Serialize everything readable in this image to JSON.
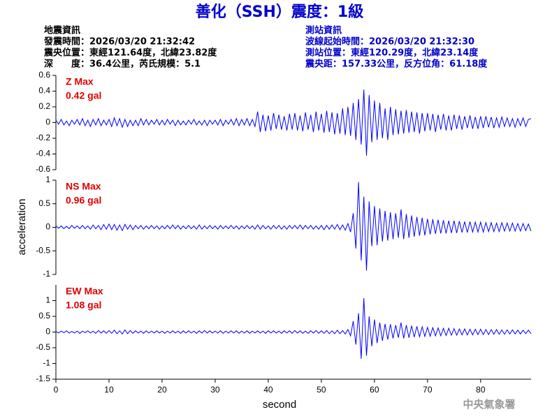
{
  "header": {
    "title": "善化（SSH）震度：1級",
    "left": [
      "地震資訊",
      "發震時間：2026/03/20 21:32:42",
      "震央位置：東經121.64度，北緯23.82度",
      "深　　度：36.4公里，芮氏規模：5.1"
    ],
    "right": [
      "測站資訊",
      "波線起始時間：2026/03/20 21:32:30",
      "測站位置：東經120.29度，北緯23.14度",
      "震央距：157.33公里，反方位角：61.18度"
    ],
    "footer": "中央氣象署"
  },
  "chart_data": {
    "type": "line",
    "color": "#0000ff",
    "xlabel": "second",
    "ylabel": "acceleration",
    "xlim": [
      0,
      89.5
    ],
    "xticks": [
      0,
      10,
      20,
      30,
      40,
      50,
      60,
      70,
      80
    ],
    "x": [
      0,
      0.5,
      1,
      1.5,
      2,
      2.5,
      3,
      3.5,
      4,
      4.5,
      5,
      5.5,
      6,
      6.5,
      7,
      7.5,
      8,
      8.5,
      9,
      9.5,
      10,
      10.5,
      11,
      11.5,
      12,
      12.5,
      13,
      13.5,
      14,
      14.5,
      15,
      15.5,
      16,
      16.5,
      17,
      17.5,
      18,
      18.5,
      19,
      19.5,
      20,
      20.5,
      21,
      21.5,
      22,
      22.5,
      23,
      23.5,
      24,
      24.5,
      25,
      25.5,
      26,
      26.5,
      27,
      27.5,
      28,
      28.5,
      29,
      29.5,
      30,
      30.5,
      31,
      31.5,
      32,
      32.5,
      33,
      33.5,
      34,
      34.5,
      35,
      35.5,
      36,
      36.5,
      37,
      37.5,
      38,
      38.5,
      39,
      39.5,
      40,
      40.5,
      41,
      41.5,
      42,
      42.5,
      43,
      43.5,
      44,
      44.5,
      45,
      45.5,
      46,
      46.5,
      47,
      47.5,
      48,
      48.5,
      49,
      49.5,
      50,
      50.5,
      51,
      51.5,
      52,
      52.5,
      53,
      53.5,
      54,
      54.5,
      55,
      55.5,
      56,
      56.5,
      57,
      57.5,
      58,
      58.5,
      59,
      59.5,
      60,
      60.5,
      61,
      61.5,
      62,
      62.5,
      63,
      63.5,
      64,
      64.5,
      65,
      65.5,
      66,
      66.5,
      67,
      67.5,
      68,
      68.5,
      69,
      69.5,
      70,
      70.5,
      71,
      71.5,
      72,
      72.5,
      73,
      73.5,
      74,
      74.5,
      75,
      75.5,
      76,
      76.5,
      77,
      77.5,
      78,
      78.5,
      79,
      79.5,
      80,
      80.5,
      81,
      81.5,
      82,
      82.5,
      83,
      83.5,
      84,
      84.5,
      85,
      85.5,
      86,
      86.5,
      87,
      87.5,
      88,
      88.5,
      89,
      89.5
    ],
    "panels": [
      {
        "label": "Z Max",
        "max_label": "0.42 gal",
        "ylim": [
          -0.6,
          0.6
        ],
        "yticks": [
          -0.6,
          -0.4,
          -0.2,
          0,
          0.2,
          0.4,
          0.6
        ],
        "values": [
          0.03,
          -0.02,
          0.04,
          -0.03,
          0.02,
          -0.04,
          0.03,
          -0.02,
          0.04,
          -0.03,
          0.05,
          -0.04,
          0.03,
          -0.05,
          0.04,
          -0.03,
          0.05,
          -0.04,
          0.03,
          -0.03,
          0.04,
          -0.05,
          0.06,
          -0.04,
          0.05,
          -0.06,
          0.04,
          -0.05,
          0.03,
          -0.04,
          0.03,
          -0.04,
          0.05,
          -0.03,
          0.04,
          -0.03,
          0.03,
          -0.02,
          0.04,
          -0.03,
          0.03,
          -0.03,
          0.04,
          -0.02,
          0.03,
          -0.04,
          0.03,
          -0.03,
          0.02,
          -0.03,
          0.03,
          -0.02,
          0.04,
          -0.03,
          0.02,
          -0.03,
          0.03,
          -0.04,
          0.03,
          -0.02,
          0.03,
          -0.03,
          0.04,
          -0.04,
          0.03,
          -0.02,
          0.04,
          -0.03,
          0.05,
          -0.04,
          0.04,
          -0.03,
          0.05,
          -0.04,
          0.04,
          -0.05,
          0.14,
          -0.12,
          0.1,
          -0.11,
          0.09,
          -0.1,
          0.12,
          -0.08,
          0.1,
          -0.09,
          0.08,
          -0.1,
          0.11,
          -0.09,
          0.12,
          -0.1,
          0.09,
          -0.11,
          0.13,
          -0.09,
          0.1,
          -0.12,
          0.14,
          -0.1,
          0.11,
          -0.13,
          0.15,
          -0.12,
          0.13,
          -0.15,
          0.12,
          -0.14,
          0.18,
          -0.16,
          0.2,
          -0.17,
          0.25,
          -0.22,
          0.3,
          -0.28,
          0.42,
          -0.42,
          0.35,
          -0.25,
          0.28,
          -0.22,
          0.25,
          -0.2,
          0.18,
          -0.22,
          0.2,
          -0.16,
          0.17,
          -0.15,
          0.15,
          -0.14,
          0.16,
          -0.13,
          0.14,
          -0.12,
          0.13,
          -0.14,
          0.12,
          -0.11,
          0.12,
          -0.1,
          0.11,
          -0.12,
          0.1,
          -0.09,
          0.11,
          -0.1,
          0.09,
          -0.1,
          0.1,
          -0.08,
          0.09,
          -0.09,
          0.08,
          -0.07,
          0.09,
          -0.08,
          0.07,
          -0.08,
          0.08,
          -0.07,
          0.08,
          -0.06,
          0.07,
          -0.07,
          0.06,
          -0.06,
          0.07,
          -0.05,
          0.06,
          -0.05,
          0.05,
          -0.06,
          0.05,
          -0.04,
          0.06,
          -0.05,
          0.04,
          0.05
        ]
      },
      {
        "label": "NS Max",
        "max_label": "0.96 gal",
        "ylim": [
          -1,
          1
        ],
        "yticks": [
          -1,
          -0.5,
          0,
          0.5,
          1
        ],
        "values": [
          0.03,
          -0.02,
          0.03,
          -0.03,
          0.02,
          -0.03,
          0.04,
          -0.02,
          0.03,
          -0.03,
          0.04,
          -0.03,
          0.03,
          -0.04,
          0.05,
          -0.03,
          0.04,
          -0.05,
          0.06,
          -0.04,
          0.07,
          -0.05,
          0.06,
          -0.06,
          0.05,
          -0.07,
          0.06,
          -0.04,
          0.05,
          -0.05,
          0.04,
          -0.03,
          0.04,
          -0.04,
          0.03,
          -0.03,
          0.04,
          -0.03,
          0.03,
          -0.04,
          0.03,
          -0.03,
          0.04,
          -0.03,
          0.05,
          -0.03,
          0.04,
          -0.04,
          0.03,
          -0.03,
          0.04,
          -0.03,
          0.03,
          -0.04,
          0.05,
          -0.04,
          0.03,
          -0.03,
          0.04,
          -0.03,
          0.03,
          -0.04,
          0.04,
          -0.03,
          0.03,
          -0.03,
          0.04,
          -0.03,
          0.03,
          -0.04,
          0.03,
          -0.03,
          0.04,
          -0.03,
          0.03,
          -0.04,
          0.05,
          -0.04,
          0.04,
          -0.03,
          0.03,
          -0.04,
          0.04,
          -0.03,
          0.04,
          -0.04,
          0.03,
          -0.04,
          0.04,
          -0.03,
          0.04,
          -0.03,
          0.05,
          -0.04,
          0.04,
          -0.03,
          0.04,
          -0.04,
          0.03,
          -0.04,
          0.04,
          -0.05,
          0.04,
          -0.04,
          0.05,
          -0.04,
          0.06,
          -0.05,
          0.05,
          -0.06,
          0.08,
          -0.1,
          0.3,
          -0.45,
          0.96,
          -0.7,
          0.65,
          -0.92,
          0.55,
          -0.4,
          0.45,
          -0.38,
          0.4,
          -0.3,
          0.35,
          -0.28,
          0.32,
          -0.25,
          0.3,
          -0.22,
          0.38,
          -0.25,
          0.28,
          -0.22,
          0.25,
          -0.2,
          0.22,
          -0.18,
          0.2,
          -0.17,
          0.18,
          -0.15,
          0.17,
          -0.14,
          0.16,
          -0.13,
          0.15,
          -0.13,
          0.14,
          -0.12,
          0.14,
          -0.12,
          0.13,
          -0.11,
          0.12,
          -0.11,
          0.12,
          -0.1,
          0.11,
          -0.1,
          0.11,
          -0.1,
          0.1,
          -0.09,
          0.1,
          -0.09,
          0.09,
          -0.09,
          0.1,
          -0.08,
          0.09,
          -0.08,
          0.09,
          -0.08,
          0.08,
          -0.08,
          0.08,
          -0.07,
          0.07,
          -0.08
        ]
      },
      {
        "label": "EW Max",
        "max_label": "1.08 gal",
        "ylim": [
          -1.5,
          1.5
        ],
        "yticks": [
          -1.5,
          -1,
          -0.5,
          0,
          0.5,
          1
        ],
        "values": [
          0.02,
          -0.03,
          0.03,
          -0.02,
          0.04,
          -0.03,
          0.02,
          -0.03,
          0.03,
          -0.04,
          0.03,
          -0.02,
          0.04,
          -0.03,
          0.03,
          -0.04,
          0.05,
          -0.03,
          0.04,
          -0.04,
          0.05,
          -0.04,
          0.06,
          -0.05,
          0.04,
          -0.06,
          0.07,
          -0.05,
          0.05,
          -0.04,
          0.04,
          -0.03,
          0.03,
          -0.04,
          0.04,
          -0.03,
          0.03,
          -0.03,
          0.04,
          -0.03,
          0.03,
          -0.04,
          0.03,
          -0.03,
          0.04,
          -0.03,
          0.03,
          -0.04,
          0.04,
          -0.03,
          0.04,
          -0.03,
          0.03,
          -0.04,
          0.04,
          -0.03,
          0.05,
          -0.03,
          0.04,
          -0.03,
          0.03,
          -0.03,
          0.04,
          -0.04,
          0.03,
          -0.03,
          0.04,
          -0.03,
          0.04,
          -0.04,
          0.03,
          -0.03,
          0.04,
          -0.04,
          0.03,
          -0.03,
          0.04,
          -0.03,
          0.03,
          -0.04,
          0.04,
          -0.03,
          0.04,
          -0.03,
          0.03,
          -0.04,
          0.04,
          -0.03,
          0.04,
          -0.04,
          0.05,
          -0.03,
          0.04,
          -0.04,
          0.03,
          -0.04,
          0.04,
          -0.03,
          0.05,
          -0.04,
          0.04,
          -0.04,
          0.05,
          -0.05,
          0.04,
          -0.05,
          0.06,
          -0.05,
          0.05,
          -0.06,
          0.08,
          -0.12,
          0.35,
          -0.4,
          0.6,
          -0.85,
          1.08,
          -0.75,
          0.5,
          -0.45,
          0.4,
          -0.35,
          0.3,
          -0.28,
          0.26,
          -0.24,
          0.25,
          -0.2,
          0.22,
          -0.18,
          0.3,
          -0.2,
          0.22,
          -0.18,
          0.2,
          -0.16,
          0.18,
          -0.15,
          0.17,
          -0.14,
          0.15,
          -0.13,
          0.14,
          -0.12,
          0.13,
          -0.12,
          0.12,
          -0.11,
          0.12,
          -0.1,
          0.11,
          -0.1,
          0.1,
          -0.09,
          0.1,
          -0.09,
          0.09,
          -0.09,
          0.09,
          -0.08,
          0.09,
          -0.08,
          0.08,
          -0.08,
          0.08,
          -0.07,
          0.08,
          -0.07,
          0.07,
          -0.07,
          0.07,
          -0.06,
          0.07,
          -0.06,
          0.06,
          -0.06,
          0.06,
          -0.05,
          0.06,
          -0.05
        ]
      }
    ]
  }
}
